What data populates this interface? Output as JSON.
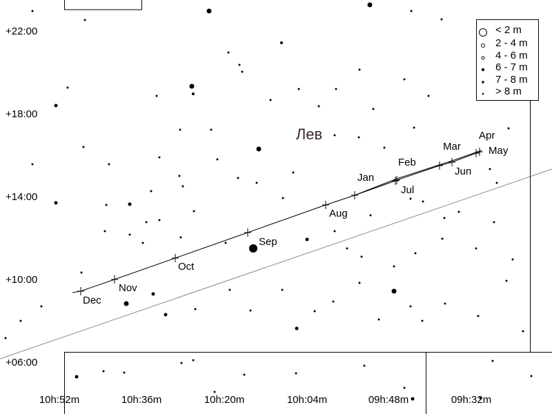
{
  "axes": {
    "dec_ticks": [
      "+22:00",
      "+18:00",
      "+14:00",
      "+10:00",
      "+06:00"
    ],
    "ra_ticks": [
      "10h:52m",
      "10h:36m",
      "10h:20m",
      "10h:04m",
      "09h:48m",
      "09h:32m"
    ]
  },
  "constellation": "Лев",
  "path_labels": [
    "Dec",
    "Nov",
    "Oct",
    "Sep",
    "Aug",
    "Jan",
    "Jul",
    "Feb",
    "Mar",
    "Jun",
    "Apr",
    "May"
  ],
  "legend": [
    "< 2 m",
    "2 - 4 m",
    "4 - 6 m",
    "6 - 7 m",
    "7 - 8 m",
    "> 8 m"
  ]
}
